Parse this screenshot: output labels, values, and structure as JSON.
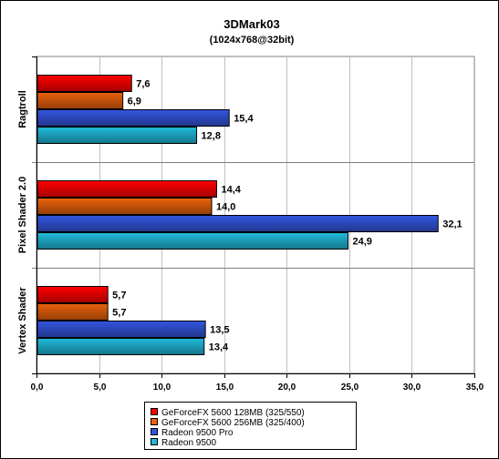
{
  "chart_data": {
    "type": "bar",
    "orientation": "horizontal",
    "title": "3DMark03",
    "subtitle": "(1024x768@32bit)",
    "categories": [
      "Ragtroll",
      "Pixel Shader 2.0",
      "Vertex Shader"
    ],
    "series": [
      {
        "name": "GeForceFX 5600 128MB (325/550)",
        "color": "#ff0000",
        "values": [
          7.6,
          14.4,
          5.7
        ],
        "labels": [
          "7,6",
          "14,4",
          "5,7"
        ]
      },
      {
        "name": "GeForceFX 5600 256MB (325/400)",
        "color": "#e8600c",
        "values": [
          6.9,
          14.0,
          5.7
        ],
        "labels": [
          "6,9",
          "14,0",
          "5,7"
        ]
      },
      {
        "name": "Radeon 9500 Pro",
        "color": "#3355dd",
        "values": [
          15.4,
          32.1,
          13.5
        ],
        "labels": [
          "15,4",
          "32,1",
          "13,5"
        ]
      },
      {
        "name": "Radeon 9500",
        "color": "#20b8d8",
        "values": [
          12.8,
          24.9,
          13.4
        ],
        "labels": [
          "12,8",
          "24,9",
          "13,4"
        ]
      }
    ],
    "xlim": [
      0,
      35
    ],
    "xticks": [
      0,
      5,
      10,
      15,
      20,
      25,
      30,
      35
    ],
    "xtick_labels": [
      "0,0",
      "5,0",
      "10,0",
      "15,0",
      "20,0",
      "25,0",
      "30,0",
      "35,0"
    ],
    "grid": "vertical",
    "legend": "bottom-center"
  }
}
